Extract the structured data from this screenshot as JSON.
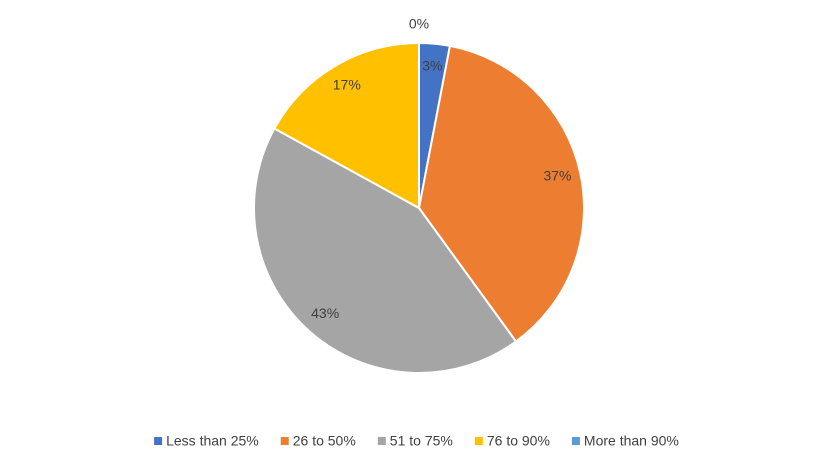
{
  "chart_data": {
    "type": "pie",
    "categories": [
      "Less than 25%",
      "26 to 50%",
      "51 to 75%",
      "76 to 90%",
      "More than 90%"
    ],
    "values": [
      3,
      37,
      43,
      17,
      0
    ],
    "value_labels": [
      "3%",
      "37%",
      "43%",
      "17%",
      "0%"
    ],
    "colors": [
      "#4472c4",
      "#ed7d31",
      "#a5a5a5",
      "#ffc000",
      "#5b9bd5"
    ],
    "legend": "bottom"
  }
}
